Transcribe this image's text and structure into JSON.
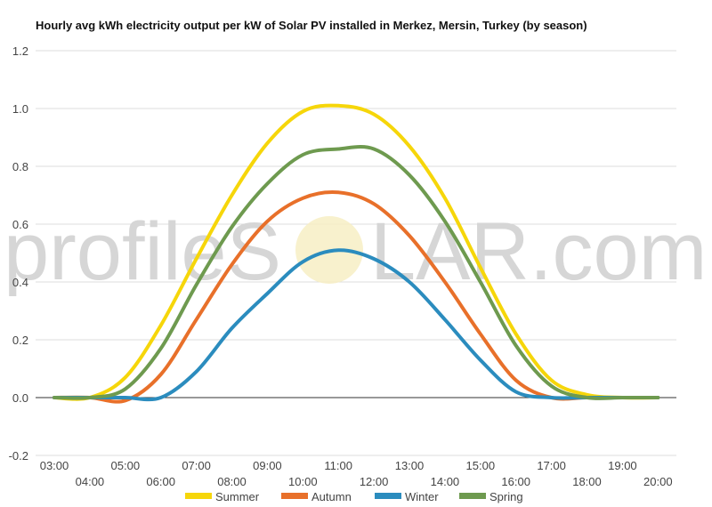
{
  "watermark": {
    "text_left": "profileS",
    "text_right": "LAR.com"
  },
  "chart_data": {
    "type": "line",
    "title": "Hourly avg kWh electricity output per kW of Solar PV installed in Merkez, Mersin, Turkey (by season)",
    "xlabel": "",
    "ylabel": "",
    "ylim": [
      -0.2,
      1.2
    ],
    "yticks": [
      "-0.2",
      "0.0",
      "0.2",
      "0.4",
      "0.6",
      "0.8",
      "1.0",
      "1.2"
    ],
    "x": [
      "03:00",
      "04:00",
      "05:00",
      "06:00",
      "07:00",
      "08:00",
      "09:00",
      "10:00",
      "11:00",
      "12:00",
      "13:00",
      "14:00",
      "15:00",
      "16:00",
      "17:00",
      "18:00",
      "19:00",
      "20:00"
    ],
    "grid": true,
    "legend_position": "bottom",
    "series": [
      {
        "name": "Summer",
        "color": "#f6d60a",
        "values": [
          0.0,
          0.0,
          0.07,
          0.25,
          0.48,
          0.7,
          0.88,
          0.99,
          1.01,
          0.98,
          0.87,
          0.69,
          0.45,
          0.22,
          0.06,
          0.01,
          0.0,
          0.0
        ]
      },
      {
        "name": "Autumn",
        "color": "#e8702a",
        "values": [
          0.0,
          0.0,
          -0.01,
          0.08,
          0.27,
          0.46,
          0.61,
          0.69,
          0.71,
          0.67,
          0.56,
          0.4,
          0.22,
          0.06,
          0.0,
          0.0,
          0.0,
          0.0
        ]
      },
      {
        "name": "Winter",
        "color": "#2b8cbe",
        "values": [
          0.0,
          0.0,
          0.0,
          0.0,
          0.09,
          0.24,
          0.36,
          0.47,
          0.51,
          0.48,
          0.4,
          0.27,
          0.13,
          0.02,
          0.0,
          0.0,
          0.0,
          0.0
        ]
      },
      {
        "name": "Spring",
        "color": "#6e9a4f",
        "values": [
          0.0,
          0.0,
          0.03,
          0.17,
          0.39,
          0.59,
          0.74,
          0.84,
          0.86,
          0.86,
          0.77,
          0.61,
          0.4,
          0.18,
          0.04,
          0.0,
          0.0,
          0.0
        ]
      }
    ]
  }
}
